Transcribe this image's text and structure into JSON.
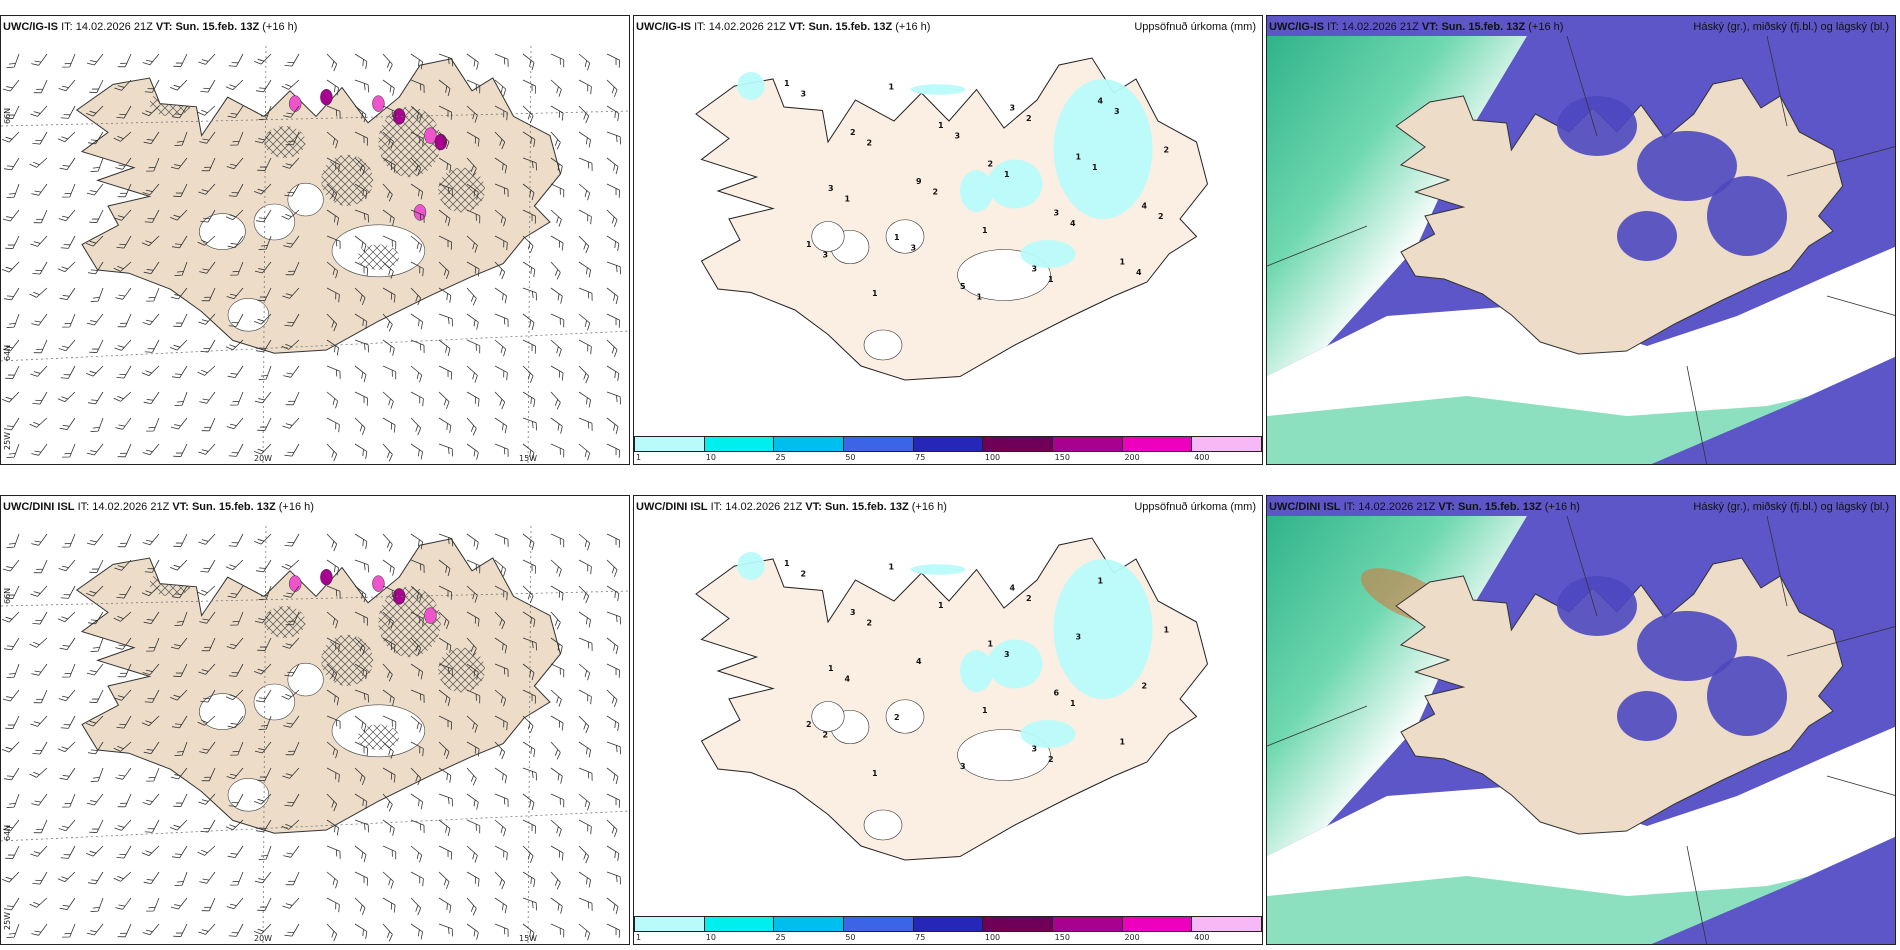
{
  "rows": [
    {
      "model": "UWC/IG-IS",
      "it_label": "IT:",
      "it_value": "14.02.2026 21Z",
      "vt_label": "VT:",
      "vt_value": "Sun. 15.feb. 13Z",
      "lead": "(+16 h)"
    },
    {
      "model": "UWC/DINI ISL",
      "it_label": "IT:",
      "it_value": "14.02.2026 21Z",
      "vt_label": "VT:",
      "vt_value": "Sun. 15.feb. 13Z",
      "lead": "(+16 h)"
    }
  ],
  "precip_title": "Uppsöfnuð úrkoma (mm)",
  "cloud_title": "Háský (gr.), miðský (fj.bl.) og lágský (bl.)",
  "axis_labels": {
    "lat66": "66N",
    "lat64": "64N",
    "lon25": "25W",
    "lon20": "20W",
    "lon15": "15W"
  },
  "colorbar": {
    "colors": [
      "#b9fbfb",
      "#00eeee",
      "#00bfee",
      "#3c64e6",
      "#2626b8",
      "#6e0058",
      "#a8008f",
      "#ee00bf",
      "#f6b9f6"
    ],
    "ticks": [
      "1",
      "10",
      "25",
      "50",
      "75",
      "100",
      "150",
      "200",
      "400"
    ]
  },
  "precip_labels_top": [
    "1",
    "2",
    "1",
    "3",
    "3",
    "3",
    "2",
    "3",
    "1",
    "1",
    "1",
    "4",
    "9",
    "1",
    "1",
    "4",
    "5",
    "2",
    "1",
    "3",
    "1",
    "3",
    "2",
    "1",
    "1",
    "2",
    "4",
    "1",
    "1",
    "3",
    "3",
    "2",
    "4",
    "3",
    "2",
    "1"
  ],
  "precip_labels_bottom": [
    "1",
    "1",
    "2",
    "4",
    "1",
    "3",
    "3",
    "6",
    "1",
    "3",
    "2",
    "1",
    "4",
    "1",
    "1",
    "2",
    "3",
    "1",
    "1",
    "2",
    "3",
    "2",
    "2",
    "4",
    "2",
    "2",
    "1",
    "1"
  ]
}
